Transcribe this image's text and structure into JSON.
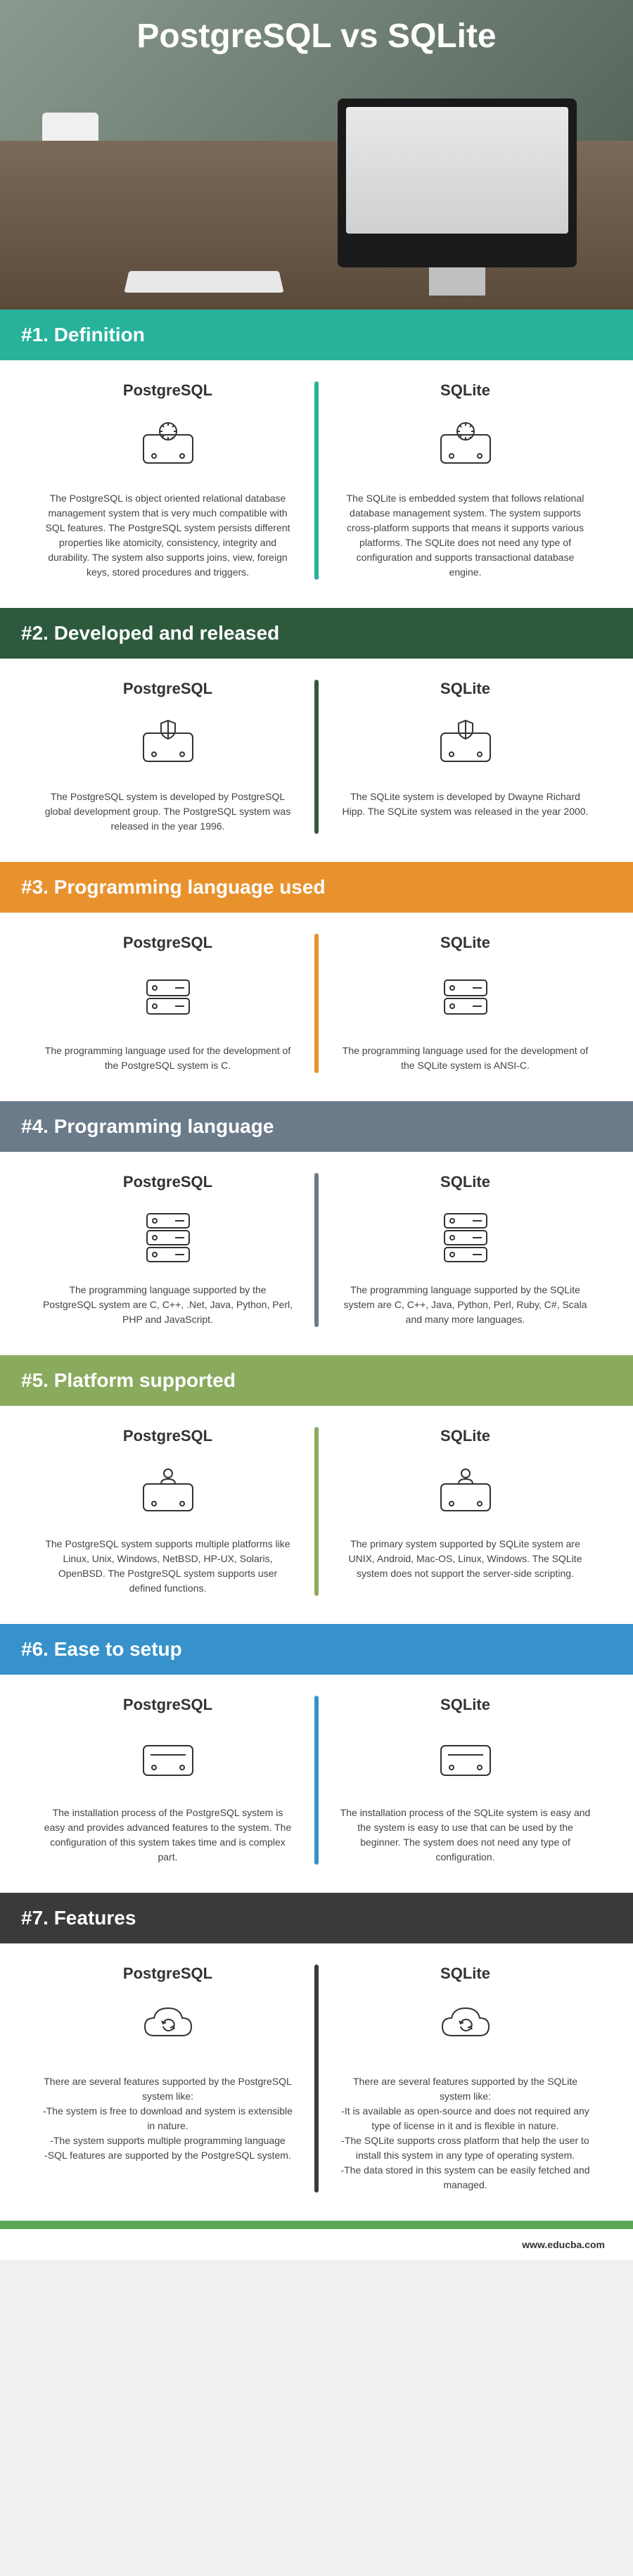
{
  "title": "PostgreSQL vs SQLite",
  "footer_url": "www.educba.com",
  "colors": {
    "teal": "#27b29c",
    "darkgreen": "#2d5a3d",
    "orange": "#e8922e",
    "grayblue": "#6b7b8a",
    "olive": "#8aab5e",
    "blue": "#3792cb",
    "charcoal": "#3a3a3a",
    "green": "#5aa857"
  },
  "sections": [
    {
      "header": "#1. Definition",
      "header_bg": "teal",
      "divider_bg": "teal",
      "icon": "hdd-gear",
      "left_title": "PostgreSQL",
      "right_title": "SQLite",
      "left_text": "The PostgreSQL is object oriented relational database management system that is very much compatible with SQL features. The PostgreSQL system persists different properties like atomicity, consistency, integrity and durability. The system also supports joins, view, foreign keys, stored procedures and triggers.",
      "right_text": "The SQLite is embedded system that follows relational database management system. The system supports cross-platform supports that means it supports various platforms. The SQLite does not need any type of configuration and supports transactional database engine."
    },
    {
      "header": "#2. Developed and released",
      "header_bg": "darkgreen",
      "divider_bg": "darkgreen",
      "icon": "hdd-shield",
      "left_title": "PostgreSQL",
      "right_title": "SQLite",
      "left_text": "The PostgreSQL system is developed by PostgreSQL global development group. The PostgreSQL system was released in the year 1996.",
      "right_text": "The SQLite system is developed by Dwayne Richard Hipp. The SQLite system was released in the year 2000."
    },
    {
      "header": "#3. Programming language used",
      "header_bg": "orange",
      "divider_bg": "orange",
      "icon": "server-small",
      "left_title": "PostgreSQL",
      "right_title": "SQLite",
      "left_text": "The programming language used for the development of the PostgreSQL system is C.",
      "right_text": "The programming language used for the development of the SQLite system is ANSI-C."
    },
    {
      "header": "#4. Programming language",
      "header_bg": "grayblue",
      "divider_bg": "grayblue",
      "icon": "server-large",
      "left_title": "PostgreSQL",
      "right_title": "SQLite",
      "left_text": "The programming language supported by the PostgreSQL system are C, C++, .Net, Java, Python, Perl, PHP and JavaScript.",
      "right_text": "The programming language supported by the SQLite system are C, C++, Java, Python, Perl, Ruby, C#, Scala and many more languages."
    },
    {
      "header": "#5. Platform supported",
      "header_bg": "olive",
      "divider_bg": "olive",
      "icon": "hdd-user",
      "left_title": "PostgreSQL",
      "right_title": "SQLite",
      "left_text": "The PostgreSQL system supports multiple platforms like Linux, Unix, Windows, NetBSD, HP-UX, Solaris, OpenBSD. The PostgreSQL system supports user defined functions.",
      "right_text": "The primary system supported by SQLite system are UNIX, Android, Mac-OS, Linux, Windows. The SQLite system does not support the server-side scripting."
    },
    {
      "header": "#6. Ease to setup",
      "header_bg": "blue",
      "divider_bg": "blue",
      "icon": "hdd-plain",
      "left_title": "PostgreSQL",
      "right_title": "SQLite",
      "left_text": "The installation process of the PostgreSQL system is easy and provides advanced features to the system. The configuration of this system takes time and is complex part.",
      "right_text": "The installation process of the SQLite system is easy and the system is easy to use that can be used by the beginner. The system does not need any type of configuration."
    },
    {
      "header": "#7. Features",
      "header_bg": "charcoal",
      "divider_bg": "charcoal",
      "icon": "cloud-sync",
      "left_title": "PostgreSQL",
      "right_title": "SQLite",
      "left_text": "There are several features supported by the PostgreSQL system like:\n-The system is free to download and system is extensible in nature.\n-The system supports multiple programming language\n-SQL features are supported by the PostgreSQL system.",
      "right_text": "There are several features supported by the SQLite system like:\n-It is available as open-source and does not required any type of license in it and is flexible in nature.\n-The SQLite supports cross platform that help the user to install this system in any type of operating system.\n-The data stored in this system can be easily fetched and managed."
    }
  ]
}
